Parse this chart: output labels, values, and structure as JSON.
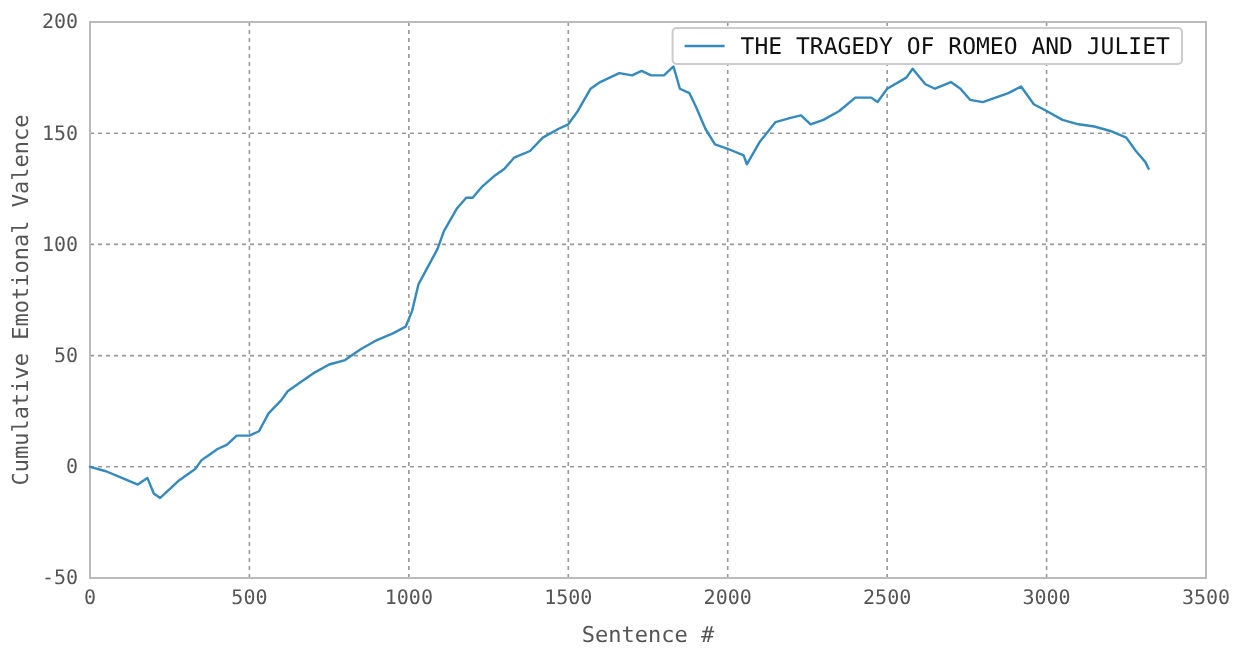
{
  "chart_data": {
    "type": "line",
    "xlabel": "Sentence #",
    "ylabel": "Cumulative Emotional Valence",
    "xlim": [
      0,
      3500
    ],
    "xticks": [
      0,
      500,
      1000,
      1500,
      2000,
      2500,
      3000,
      3500
    ],
    "ylim": [
      -50,
      200
    ],
    "yticks": [
      -50,
      0,
      50,
      100,
      150,
      200
    ],
    "grid": true,
    "legend": "top right",
    "marker": "none",
    "line_style": "solid",
    "x": [
      0,
      50,
      100,
      150,
      180,
      200,
      220,
      250,
      280,
      300,
      330,
      350,
      370,
      400,
      430,
      460,
      500,
      530,
      560,
      600,
      620,
      660,
      700,
      750,
      800,
      850,
      900,
      950,
      990,
      1010,
      1030,
      1060,
      1090,
      1110,
      1150,
      1180,
      1200,
      1230,
      1270,
      1300,
      1330,
      1380,
      1420,
      1470,
      1500,
      1530,
      1570,
      1600,
      1660,
      1700,
      1730,
      1760,
      1800,
      1830,
      1850,
      1880,
      1900,
      1930,
      1960,
      2000,
      2050,
      2060,
      2100,
      2150,
      2200,
      2230,
      2260,
      2300,
      2350,
      2400,
      2450,
      2470,
      2500,
      2560,
      2580,
      2620,
      2650,
      2700,
      2730,
      2760,
      2800,
      2880,
      2920,
      2960,
      3000,
      3050,
      3100,
      3150,
      3200,
      3250,
      3280,
      3310,
      3320
    ],
    "series": [
      {
        "name": "THE TRAGEDY OF ROMEO AND JULIET",
        "color": "#348abd",
        "values": [
          0,
          -2,
          -5,
          -8,
          -5,
          -12,
          -14,
          -10,
          -6,
          -4,
          -1,
          3,
          5,
          8,
          10,
          14,
          14,
          16,
          24,
          30,
          34,
          38,
          42,
          46,
          48,
          53,
          57,
          60,
          63,
          70,
          82,
          90,
          98,
          106,
          116,
          121,
          121,
          126,
          131,
          134,
          139,
          142,
          148,
          152,
          154,
          160,
          170,
          173,
          177,
          176,
          178,
          176,
          176,
          180,
          170,
          168,
          162,
          152,
          145,
          143,
          140,
          136,
          146,
          155,
          157,
          158,
          154,
          156,
          160,
          166,
          166,
          164,
          170,
          175,
          179,
          172,
          170,
          173,
          170,
          165,
          164,
          168,
          171,
          163,
          160,
          156,
          154,
          153,
          151,
          148,
          142,
          137,
          134
        ]
      }
    ]
  }
}
